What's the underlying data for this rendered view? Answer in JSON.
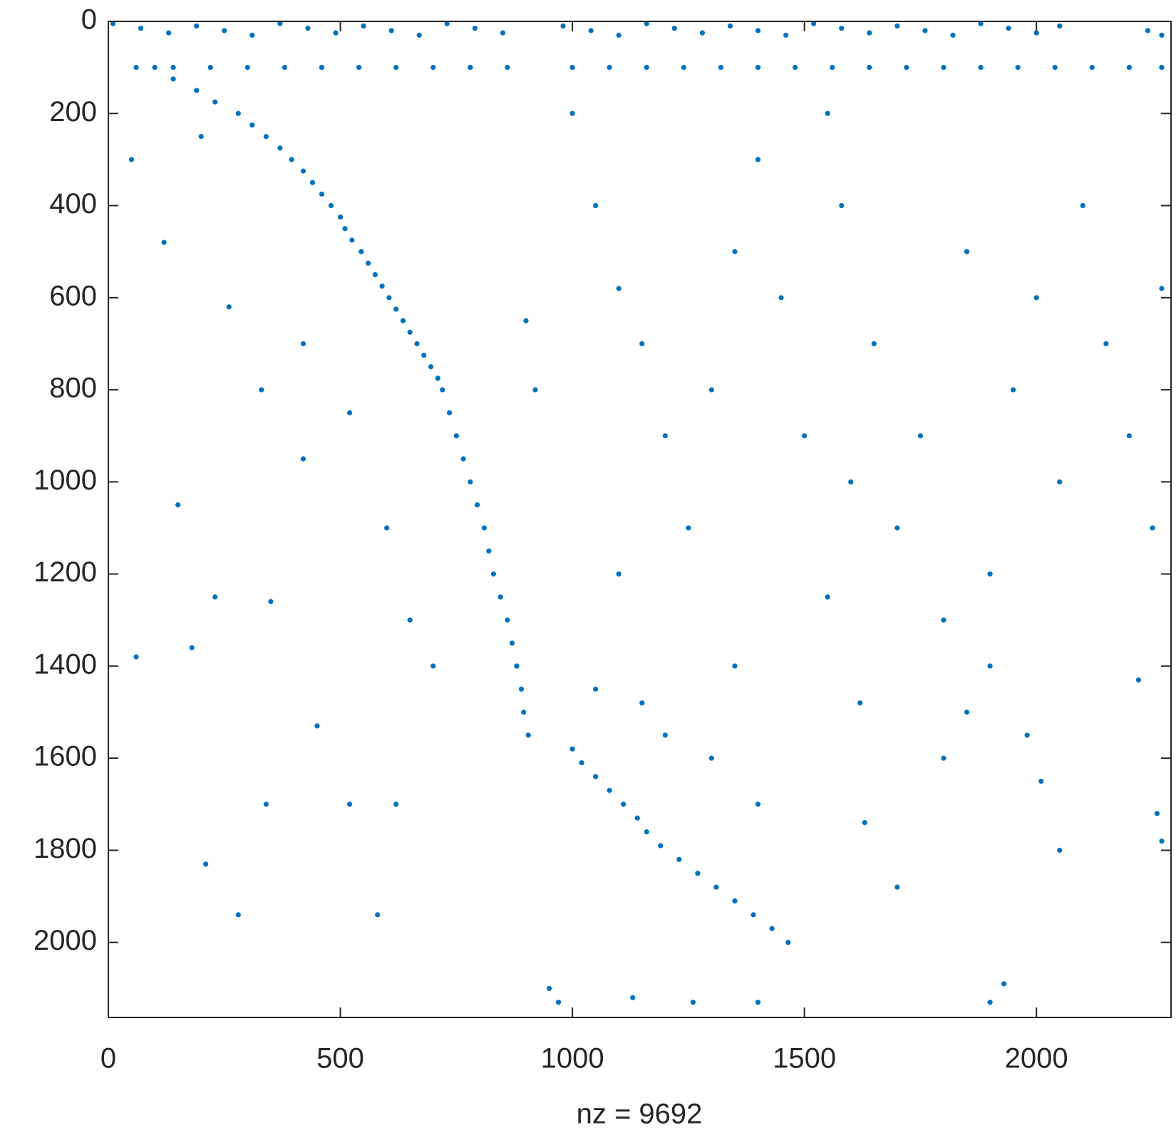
{
  "chart_data": {
    "type": "scatter",
    "xlabel": "nz = 9692",
    "color": "#0072BD",
    "xlim": [
      0,
      2290
    ],
    "ylim": [
      0,
      2163
    ],
    "y_reversed": true,
    "xticks": [
      0,
      500,
      1000,
      1500,
      2000
    ],
    "yticks": [
      0,
      200,
      400,
      600,
      800,
      1000,
      1200,
      1400,
      1600,
      1800,
      2000
    ],
    "x": [
      100,
      140,
      190,
      230,
      280,
      310,
      340,
      370,
      395,
      420,
      440,
      460,
      480,
      500,
      510,
      525,
      545,
      560,
      575,
      590,
      605,
      620,
      635,
      650,
      665,
      680,
      695,
      710,
      720,
      735,
      750,
      765,
      780,
      795,
      810,
      820,
      830,
      845,
      860,
      870,
      880,
      890,
      895,
      905,
      1000,
      1020,
      1050,
      1080,
      1110,
      1140,
      1160,
      1190,
      1230,
      1270,
      1310,
      1350,
      1390,
      1430,
      1465,
      10,
      70,
      130,
      190,
      250,
      310,
      370,
      430,
      490,
      550,
      610,
      670,
      730,
      790,
      850,
      980,
      1040,
      1100,
      1160,
      1220,
      1280,
      1340,
      1400,
      1460,
      1520,
      1580,
      1640,
      1700,
      1760,
      1820,
      1880,
      1940,
      2000,
      2050,
      2240,
      2270,
      60,
      140,
      220,
      300,
      380,
      460,
      540,
      620,
      700,
      780,
      860,
      1000,
      1080,
      1160,
      1240,
      1320,
      1400,
      1480,
      1560,
      1640,
      1720,
      1800,
      1880,
      1960,
      2040,
      2120,
      2200,
      2270,
      50,
      120,
      200,
      260,
      330,
      420,
      150,
      230,
      350,
      60,
      180,
      450,
      520,
      340,
      620,
      580,
      280,
      210,
      420,
      520,
      600,
      650,
      700,
      900,
      920,
      1000,
      1050,
      1100,
      1150,
      1200,
      1250,
      1300,
      1350,
      1400,
      1450,
      1500,
      1550,
      1580,
      1600,
      1650,
      1700,
      1750,
      1800,
      1850,
      1900,
      1950,
      2000,
      2050,
      2100,
      2150,
      2200,
      2250,
      2270,
      1100,
      1050,
      1150,
      1200,
      1300,
      1350,
      1400,
      1550,
      1620,
      1630,
      1700,
      1800,
      1850,
      1900,
      1980,
      2010,
      2050,
      2220,
      2260,
      2270,
      950,
      970,
      1130,
      1260,
      1400,
      1900,
      1930
    ],
    "values": [
      100,
      125,
      150,
      175,
      200,
      225,
      250,
      275,
      300,
      325,
      350,
      375,
      400,
      425,
      450,
      475,
      500,
      525,
      550,
      575,
      600,
      625,
      650,
      675,
      700,
      725,
      750,
      775,
      800,
      850,
      900,
      950,
      1000,
      1050,
      1100,
      1150,
      1200,
      1250,
      1300,
      1350,
      1400,
      1450,
      1500,
      1550,
      1580,
      1610,
      1640,
      1670,
      1700,
      1730,
      1760,
      1790,
      1820,
      1850,
      1880,
      1910,
      1940,
      1970,
      2000,
      5,
      15,
      25,
      10,
      20,
      30,
      5,
      15,
      25,
      10,
      20,
      30,
      5,
      15,
      25,
      10,
      20,
      30,
      5,
      15,
      25,
      10,
      20,
      30,
      5,
      15,
      25,
      10,
      20,
      30,
      5,
      15,
      25,
      10,
      20,
      30,
      100,
      100,
      100,
      100,
      100,
      100,
      100,
      100,
      100,
      100,
      100,
      100,
      100,
      100,
      100,
      100,
      100,
      100,
      100,
      100,
      100,
      100,
      100,
      100,
      100,
      100,
      100,
      100,
      300,
      480,
      250,
      620,
      800,
      950,
      1050,
      1250,
      1260,
      1380,
      1360,
      1530,
      1700,
      1700,
      1700,
      1940,
      1940,
      1830,
      700,
      850,
      1100,
      1300,
      1400,
      650,
      800,
      200,
      400,
      580,
      700,
      900,
      1100,
      800,
      500,
      300,
      600,
      900,
      200,
      400,
      1000,
      700,
      1100,
      900,
      1300,
      500,
      1200,
      800,
      600,
      1000,
      400,
      700,
      900,
      1100,
      580,
      1200,
      1450,
      1480,
      1550,
      1600,
      1400,
      1700,
      1250,
      1480,
      1740,
      1880,
      1600,
      1500,
      1400,
      1550,
      1650,
      1800,
      1430,
      1720,
      1780,
      2100,
      2130,
      2120,
      2130,
      2130,
      2130,
      2090
    ]
  }
}
